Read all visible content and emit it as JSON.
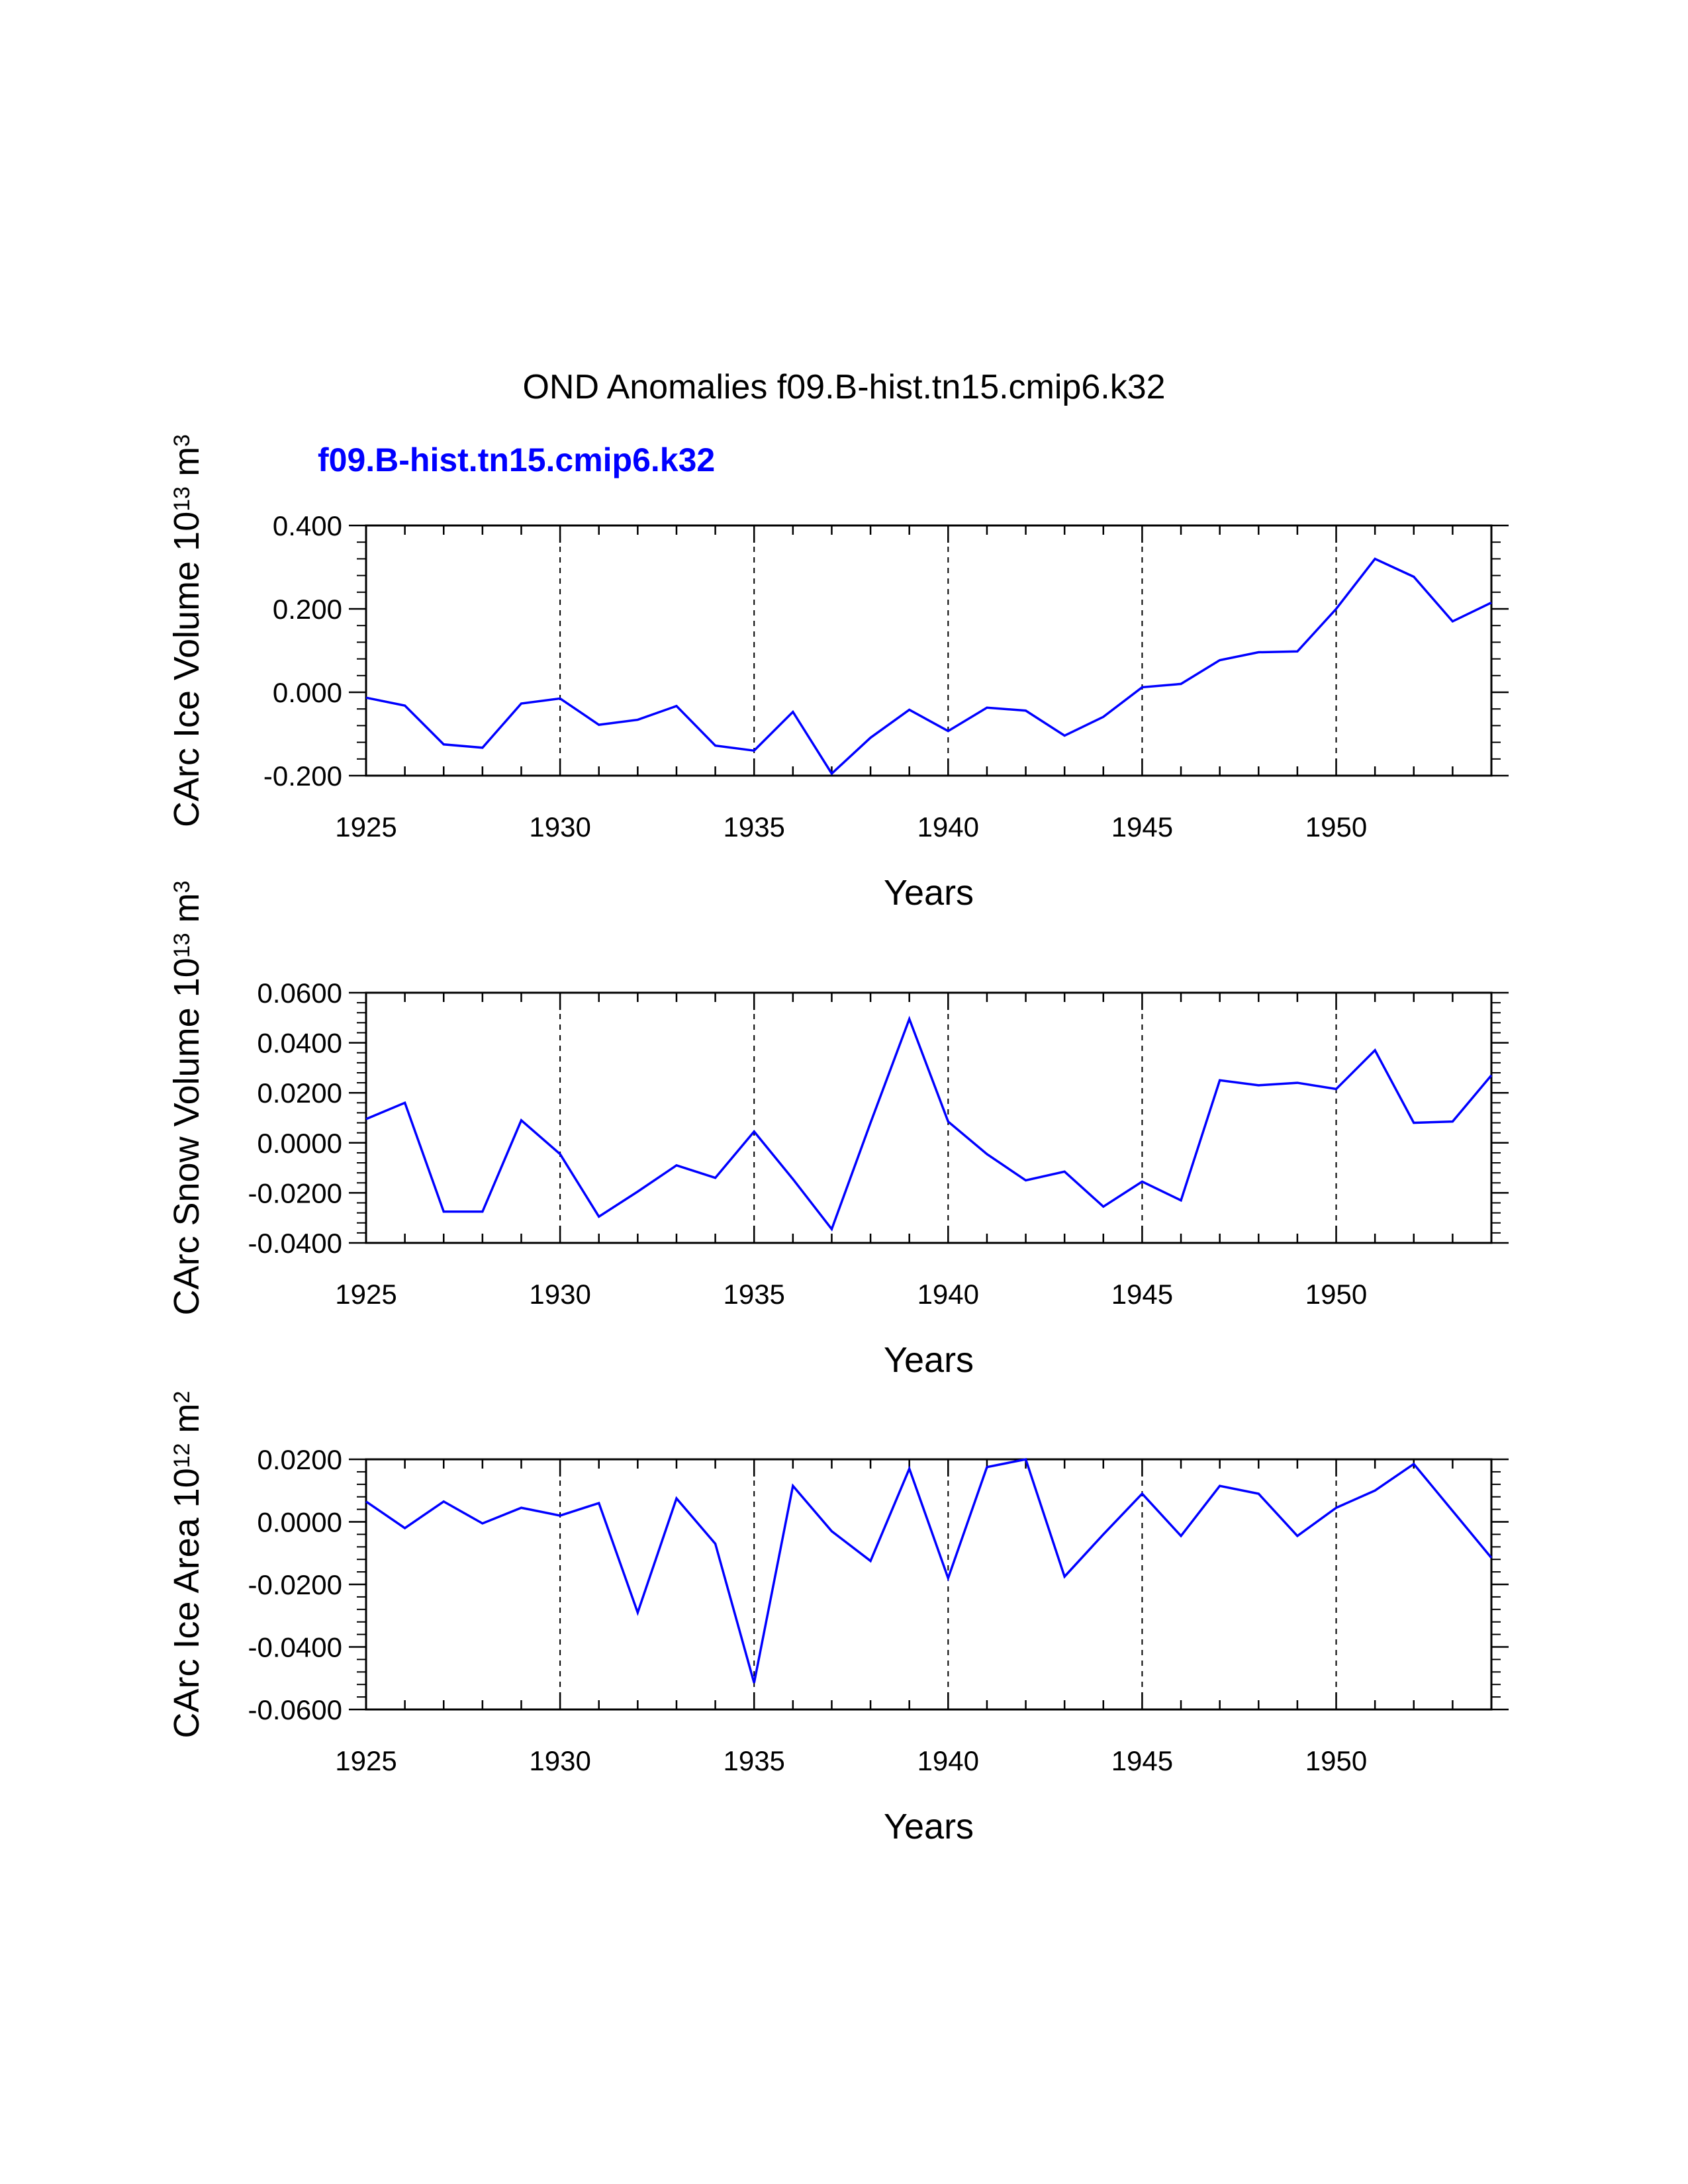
{
  "title": "OND Anomalies f09.B-hist.tn15.cmip6.k32",
  "series_label": "f09.B-hist.tn15.cmip6.k32",
  "colors": {
    "line": "#0000ff",
    "series_label": "#0000ff",
    "axes": "#000000"
  },
  "chart_data": [
    {
      "type": "line",
      "xlabel": "Years",
      "ylabel": {
        "text": "CArc Ice Volume 10",
        "exp": "13",
        "unit": " m",
        "unit_exp": "3"
      },
      "xlim": [
        1925,
        1954
      ],
      "ylim": [
        -0.2,
        0.4
      ],
      "yticks": [
        -0.2,
        0.0,
        0.2,
        0.4
      ],
      "ytick_labels": [
        "-0.200",
        "0.000",
        "0.200",
        "0.400"
      ],
      "xticks": [
        1925,
        1930,
        1935,
        1940,
        1945,
        1950
      ],
      "xtick_labels": [
        "1925",
        "1930",
        "1935",
        "1940",
        "1945",
        "1950"
      ],
      "x": [
        1925,
        1926,
        1927,
        1928,
        1929,
        1930,
        1931,
        1932,
        1933,
        1934,
        1935,
        1936,
        1937,
        1938,
        1939,
        1940,
        1941,
        1942,
        1943,
        1944,
        1945,
        1946,
        1947,
        1948,
        1949,
        1950,
        1951,
        1952,
        1953,
        1954
      ],
      "series": [
        {
          "name": "f09.B-hist.tn15.cmip6.k32",
          "values": [
            -0.013,
            -0.032,
            -0.125,
            -0.133,
            -0.027,
            -0.015,
            -0.078,
            -0.066,
            -0.033,
            -0.128,
            -0.14,
            -0.047,
            -0.195,
            -0.109,
            -0.042,
            -0.093,
            -0.037,
            -0.044,
            -0.104,
            -0.059,
            0.012,
            0.02,
            0.077,
            0.096,
            0.098,
            0.2,
            0.32,
            0.277,
            0.17,
            0.215
          ]
        }
      ],
      "grid_dashed_x": [
        1930,
        1935,
        1940,
        1945,
        1950
      ]
    },
    {
      "type": "line",
      "xlabel": "Years",
      "ylabel": {
        "text": "CArc Snow Volume 10",
        "exp": "13",
        "unit": " m",
        "unit_exp": "3"
      },
      "xlim": [
        1925,
        1954
      ],
      "ylim": [
        -0.04,
        0.06
      ],
      "yticks": [
        -0.04,
        -0.02,
        0.0,
        0.02,
        0.04,
        0.06
      ],
      "ytick_labels": [
        "-0.0400",
        "-0.0200",
        "0.0000",
        "0.0200",
        "0.0400",
        "0.0600"
      ],
      "xticks": [
        1925,
        1930,
        1935,
        1940,
        1945,
        1950
      ],
      "xtick_labels": [
        "1925",
        "1930",
        "1935",
        "1940",
        "1945",
        "1950"
      ],
      "x": [
        1925,
        1926,
        1927,
        1928,
        1929,
        1930,
        1931,
        1932,
        1933,
        1934,
        1935,
        1936,
        1937,
        1938,
        1939,
        1940,
        1941,
        1942,
        1943,
        1944,
        1945,
        1946,
        1947,
        1948,
        1949,
        1950,
        1951,
        1952,
        1953,
        1954
      ],
      "series": [
        {
          "name": "f09.B-hist.tn15.cmip6.k32",
          "values": [
            0.0095,
            0.016,
            -0.0275,
            -0.0275,
            0.009,
            -0.0045,
            -0.0295,
            -0.0195,
            -0.009,
            -0.014,
            0.0045,
            -0.0145,
            -0.0345,
            0.008,
            0.0495,
            0.0085,
            -0.0045,
            -0.015,
            -0.0115,
            -0.0255,
            -0.0155,
            -0.023,
            0.025,
            0.023,
            0.024,
            0.0215,
            0.037,
            0.008,
            0.0085,
            0.027
          ]
        }
      ],
      "grid_dashed_x": [
        1930,
        1935,
        1940,
        1945,
        1950
      ]
    },
    {
      "type": "line",
      "xlabel": "Years",
      "ylabel": {
        "text": "CArc Ice Area 10",
        "exp": "12",
        "unit": " m",
        "unit_exp": "2"
      },
      "xlim": [
        1925,
        1954
      ],
      "ylim": [
        -0.06,
        0.02
      ],
      "yticks": [
        -0.06,
        -0.04,
        -0.02,
        0.0,
        0.02
      ],
      "ytick_labels": [
        "-0.0600",
        "-0.0400",
        "-0.0200",
        "0.0000",
        "0.0200"
      ],
      "xticks": [
        1925,
        1930,
        1935,
        1940,
        1945,
        1950
      ],
      "xtick_labels": [
        "1925",
        "1930",
        "1935",
        "1940",
        "1945",
        "1950"
      ],
      "x": [
        1925,
        1926,
        1927,
        1928,
        1929,
        1930,
        1931,
        1932,
        1933,
        1934,
        1935,
        1936,
        1937,
        1938,
        1939,
        1940,
        1941,
        1942,
        1943,
        1944,
        1945,
        1946,
        1947,
        1948,
        1949,
        1950,
        1951,
        1952,
        1953,
        1954
      ],
      "series": [
        {
          "name": "f09.B-hist.tn15.cmip6.k32",
          "values": [
            0.0065,
            -0.002,
            0.0065,
            -0.0005,
            0.0045,
            0.002,
            0.006,
            -0.029,
            0.0075,
            -0.007,
            -0.0515,
            0.0115,
            -0.003,
            -0.0125,
            0.017,
            -0.018,
            0.0175,
            0.02,
            -0.0175,
            -0.004,
            0.009,
            -0.0045,
            0.0115,
            0.009,
            -0.0045,
            0.0045,
            0.01,
            0.0185,
            0.0035,
            -0.0115
          ]
        }
      ],
      "grid_dashed_x": [
        1930,
        1935,
        1940,
        1945,
        1950
      ]
    }
  ]
}
